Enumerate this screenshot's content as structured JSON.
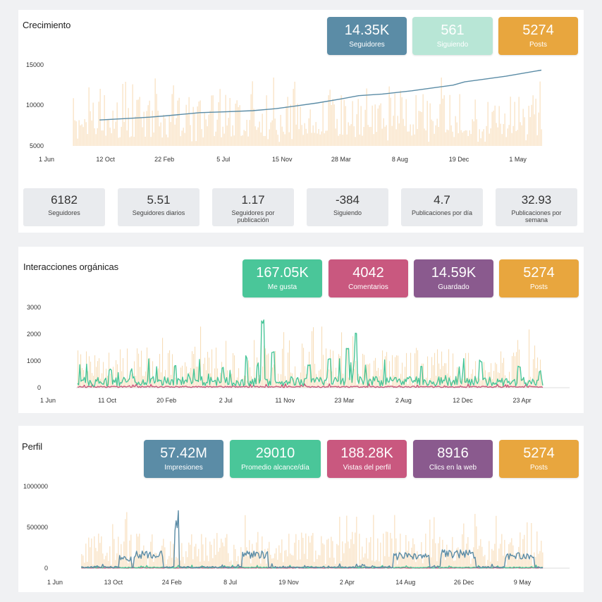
{
  "colors": {
    "blue": "#5b8ca6",
    "mint": "#b8e6d6",
    "orange": "#e8a63e",
    "green": "#4ac699",
    "pink": "#c9587f",
    "purple": "#8a5a8e",
    "bars": "#f7ddb8"
  },
  "growth": {
    "title": "Crecimiento",
    "cards": [
      {
        "value": "14.35K",
        "label": "Seguidores",
        "color": "#5b8ca6"
      },
      {
        "value": "561",
        "label": "Siguiendo",
        "color": "#b8e6d6"
      },
      {
        "value": "5274",
        "label": "Posts",
        "color": "#e8a63e"
      }
    ],
    "summary": [
      {
        "value": "6182",
        "label": "Seguidores"
      },
      {
        "value": "5.51",
        "label": "Seguidores diarios"
      },
      {
        "value": "1.17",
        "label": "Seguidores por publicación"
      },
      {
        "value": "-384",
        "label": "Siguiendo"
      },
      {
        "value": "4.7",
        "label": "Publicaciones por día"
      },
      {
        "value": "32.93",
        "label": "Publicaciones por semana"
      }
    ]
  },
  "interactions": {
    "title": "Interacciones orgánicas",
    "cards": [
      {
        "value": "167.05K",
        "label": "Me gusta",
        "color": "#4ac699"
      },
      {
        "value": "4042",
        "label": "Comentarios",
        "color": "#c9587f"
      },
      {
        "value": "14.59K",
        "label": "Guardado",
        "color": "#8a5a8e"
      },
      {
        "value": "5274",
        "label": "Posts",
        "color": "#e8a63e"
      }
    ]
  },
  "profile": {
    "title": "Perfil",
    "cards": [
      {
        "value": "57.42M",
        "label": "Impresiones",
        "color": "#5b8ca6"
      },
      {
        "value": "29010",
        "label": "Promedio alcance/día",
        "color": "#4ac699"
      },
      {
        "value": "188.28K",
        "label": "Vistas del perfil",
        "color": "#c9587f"
      },
      {
        "value": "8916",
        "label": "Clics en la web",
        "color": "#8a5a8e"
      },
      {
        "value": "5274",
        "label": "Posts",
        "color": "#e8a63e"
      }
    ]
  },
  "chart_data": [
    {
      "type": "line",
      "title": "Crecimiento",
      "x_ticks": [
        "1 Jun",
        "12 Oct",
        "22 Feb",
        "5 Jul",
        "15 Nov",
        "28 Mar",
        "8 Aug",
        "19 Dec",
        "1 May"
      ],
      "x_range": [
        0,
        8.4
      ],
      "y_ticks": [
        "15000",
        "10000",
        "5000"
      ],
      "ylim": [
        5000,
        15000
      ],
      "series": [
        {
          "kind": "line",
          "color": "#5b8ca6",
          "x": [
            0.9,
            1.4,
            1.75,
            2.0,
            2.3,
            2.6,
            3.0,
            3.5,
            3.9,
            4.2,
            4.6,
            5.0,
            5.3,
            5.7,
            6.2,
            6.6,
            6.9,
            7.1,
            7.4,
            7.8,
            8.2,
            8.4
          ],
          "y": [
            8200,
            8400,
            8550,
            8700,
            8900,
            9100,
            9200,
            9350,
            9600,
            9900,
            10300,
            10800,
            11200,
            11400,
            11800,
            12200,
            12500,
            12900,
            13200,
            13600,
            14100,
            14350
          ]
        },
        {
          "kind": "bars",
          "color": "#f7ddb8",
          "x_range": [
            0.45,
            8.4
          ],
          "typical_range": [
            6000,
            11500
          ],
          "max": 13500
        }
      ]
    },
    {
      "type": "line",
      "title": "Interacciones orgánicas",
      "x_ticks": [
        "1 Jun",
        "11 Oct",
        "20 Feb",
        "2 Jul",
        "11 Nov",
        "23 Mar",
        "2 Aug",
        "12 Dec",
        "23 Apr"
      ],
      "x_range": [
        0,
        8.35
      ],
      "y_ticks": [
        "3000",
        "2000",
        "1000",
        "0"
      ],
      "ylim": [
        0,
        3000
      ],
      "series": [
        {
          "kind": "line",
          "color": "#4ac699",
          "x_range": [
            0.5,
            8.35
          ],
          "typical": 300,
          "peaks": [
            [
              1.05,
              700
            ],
            [
              2.15,
              900
            ],
            [
              2.95,
              800
            ],
            [
              3.35,
              1200
            ],
            [
              3.62,
              2550
            ],
            [
              3.8,
              1400
            ],
            [
              4.4,
              900
            ],
            [
              4.75,
              1100
            ],
            [
              5.05,
              1500
            ],
            [
              5.2,
              2050
            ],
            [
              6.3,
              800
            ],
            [
              7.3,
              1050
            ],
            [
              7.95,
              850
            ],
            [
              8.3,
              650
            ]
          ]
        },
        {
          "kind": "line",
          "color": "#c9587f",
          "x_range": [
            0.5,
            8.35
          ],
          "typical": 40
        },
        {
          "kind": "bars",
          "color": "#f7ddb8",
          "x_range": [
            0.5,
            8.35
          ],
          "typical_range": [
            200,
            1500
          ],
          "max": 2300
        }
      ]
    },
    {
      "type": "line",
      "title": "Perfil",
      "x_ticks": [
        "1 Jun",
        "13 Oct",
        "24 Feb",
        "8 Jul",
        "19 Nov",
        "2 Apr",
        "14 Aug",
        "26 Dec",
        "9 May"
      ],
      "x_range": [
        0,
        8.35
      ],
      "y_ticks": [
        "1000000",
        "500000",
        "0"
      ],
      "ylim": [
        0,
        1000000
      ],
      "series": [
        {
          "kind": "line",
          "color": "#5b8ca6",
          "x_range": [
            0.45,
            8.35
          ],
          "typical": 15000,
          "segments": [
            [
              1.1,
              1.3,
              150000
            ],
            [
              1.35,
              1.85,
              200000
            ],
            [
              2.05,
              2.12,
              700000
            ],
            [
              3.2,
              3.65,
              200000
            ],
            [
              5.8,
              6.4,
              180000
            ],
            [
              6.6,
              7.2,
              220000
            ],
            [
              7.7,
              8.2,
              180000
            ]
          ]
        },
        {
          "kind": "line",
          "color": "#4ac699",
          "x_range": [
            0.45,
            8.35
          ],
          "typical": 10000
        },
        {
          "kind": "line",
          "color": "#c9587f",
          "x_range": [
            0.45,
            8.35
          ],
          "typical": 3000
        },
        {
          "kind": "bars",
          "color": "#f7ddb8",
          "x_range": [
            0.45,
            8.35
          ],
          "typical_range": [
            80000,
            450000
          ],
          "max": 700000
        }
      ]
    }
  ]
}
